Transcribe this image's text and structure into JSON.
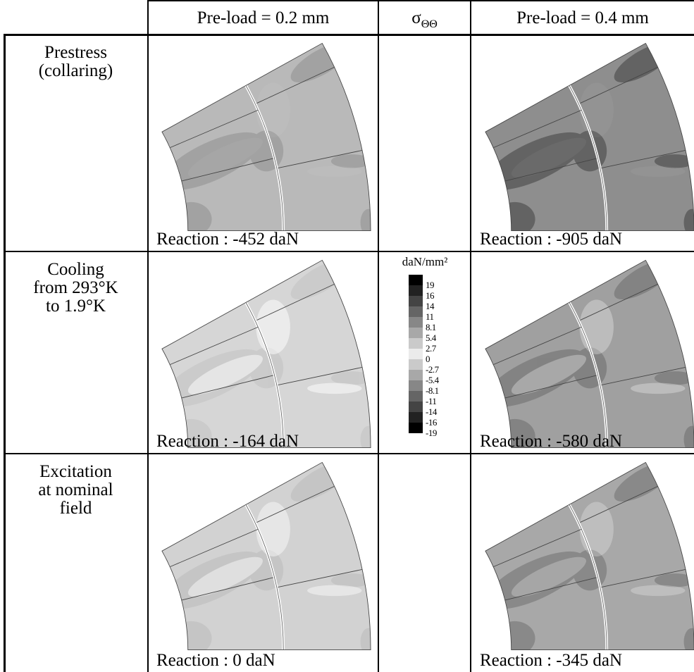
{
  "table": {
    "headers": [
      "Pre-load = 0.2 mm",
      "Pre-load = 0.4 mm"
    ],
    "stress_symbol": "σ",
    "stress_subscript": "ΘΘ",
    "rows": [
      {
        "label": [
          "Prestress",
          "(collaring)"
        ],
        "reactions": [
          "Reaction : -452 daN",
          "Reaction : -905 daN"
        ]
      },
      {
        "label": [
          "Cooling",
          "from 293°K",
          "to 1.9°K"
        ],
        "reactions": [
          "Reaction : -164 daN",
          "Reaction : -580 daN"
        ]
      },
      {
        "label": [
          "Excitation",
          "at nominal",
          "field"
        ],
        "reactions": [
          "Reaction : 0 daN",
          "Reaction : -345 daN"
        ]
      }
    ]
  },
  "legend": {
    "unit": "daN/mm²",
    "labels": [
      "19",
      "16",
      "14",
      "11",
      "8.1",
      "5.4",
      "2.7",
      "0",
      "-2.7",
      "-5.4",
      "-8.1",
      "-11",
      "-14",
      "-16",
      "-19"
    ]
  }
}
